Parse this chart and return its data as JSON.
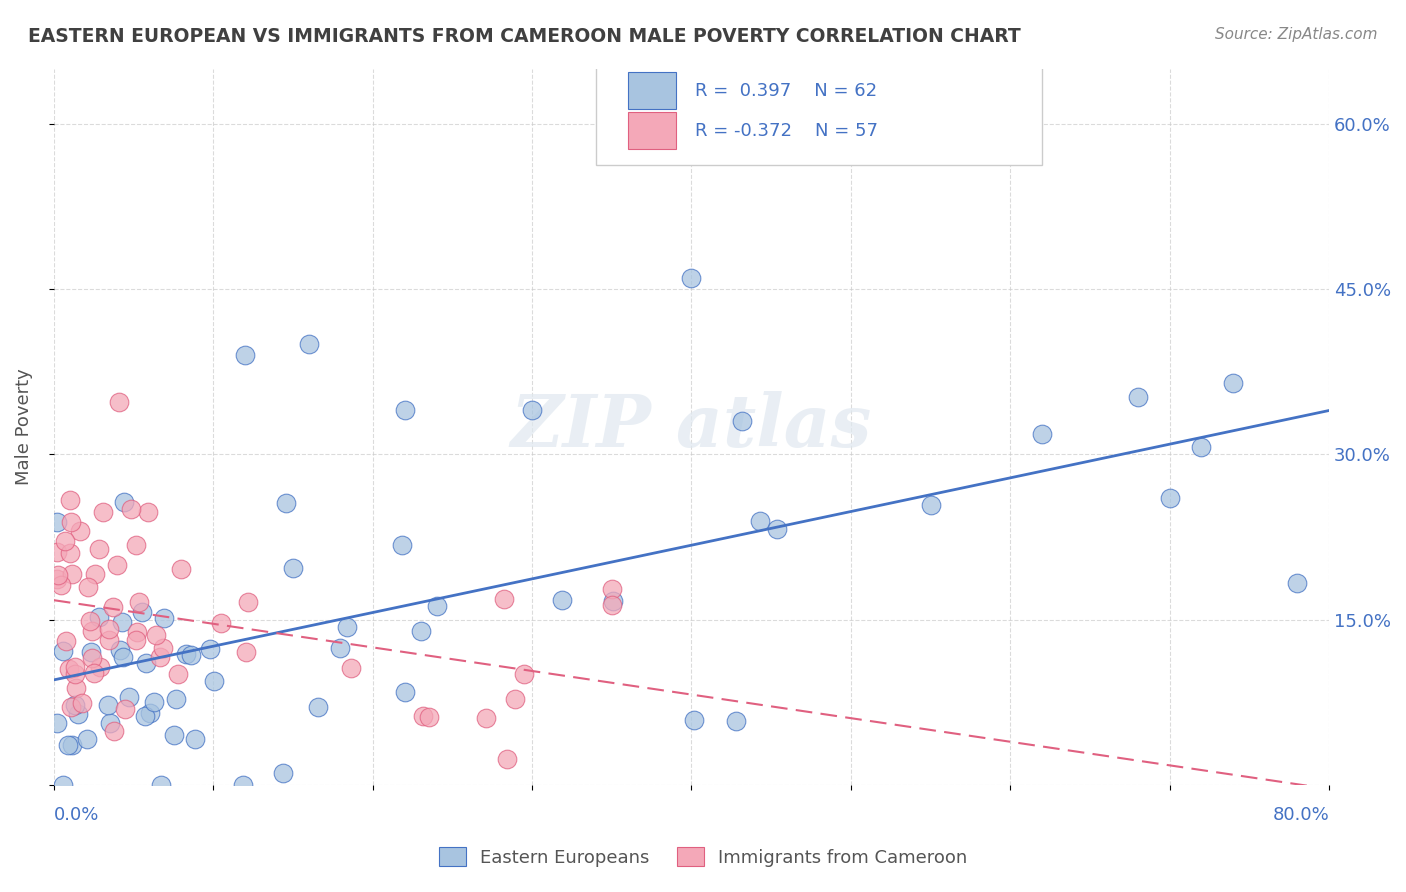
{
  "title": "EASTERN EUROPEAN VS IMMIGRANTS FROM CAMEROON MALE POVERTY CORRELATION CHART",
  "source": "Source: ZipAtlas.com",
  "xlabel": "",
  "ylabel": "Male Poverty",
  "xlim": [
    0.0,
    0.8
  ],
  "ylim": [
    0.0,
    0.65
  ],
  "grid_color": "#cccccc",
  "background_color": "#ffffff",
  "plot_bg_color": "#ffffff",
  "r1": 0.397,
  "n1": 62,
  "r2": -0.372,
  "n2": 57,
  "color1": "#a8c4e0",
  "color2": "#f4a8b8",
  "line_color1": "#4472c4",
  "line_color2": "#e06080",
  "title_color": "#404040",
  "legend_text_color": "#4472c4",
  "ytick_vals": [
    0.0,
    0.15,
    0.3,
    0.45,
    0.6
  ],
  "ytick_labels_right": [
    "",
    "15.0%",
    "30.0%",
    "45.0%",
    "60.0%"
  ],
  "xtick_vals": [
    0.0,
    0.1,
    0.2,
    0.3,
    0.4,
    0.5,
    0.6,
    0.7,
    0.8
  ]
}
